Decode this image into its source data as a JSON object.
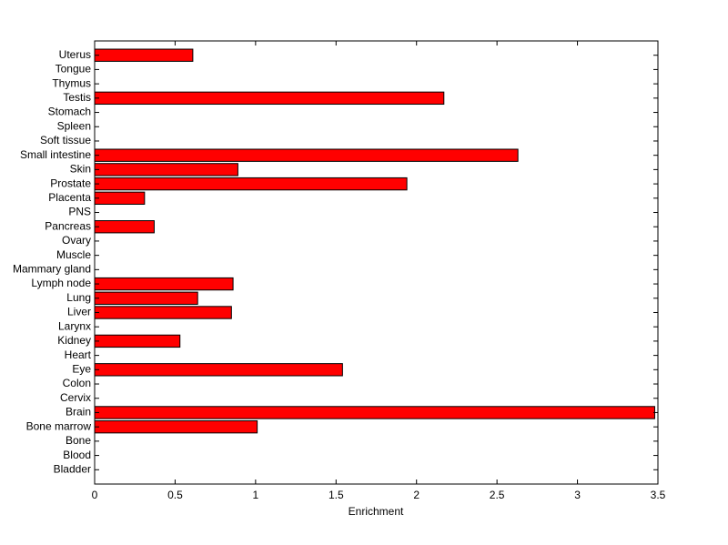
{
  "chart_data": {
    "type": "barh",
    "xlabel": "Enrichment",
    "categories": [
      "Bladder",
      "Blood",
      "Bone",
      "Bone marrow",
      "Brain",
      "Cervix",
      "Colon",
      "Eye",
      "Heart",
      "Kidney",
      "Larynx",
      "Liver",
      "Lung",
      "Lymph node",
      "Mammary gland",
      "Muscle",
      "Ovary",
      "Pancreas",
      "PNS",
      "Placenta",
      "Prostate",
      "Skin",
      "Small intestine",
      "Soft tissue",
      "Spleen",
      "Stomach",
      "Testis",
      "Thymus",
      "Tongue",
      "Uterus"
    ],
    "values": [
      0,
      0,
      0,
      1.01,
      3.48,
      0,
      0,
      1.54,
      0,
      0.53,
      0,
      0.85,
      0.64,
      0.86,
      0,
      0,
      0,
      0.37,
      0,
      0.31,
      1.94,
      0.89,
      2.63,
      0,
      0,
      0,
      2.17,
      0,
      0,
      0.61
    ],
    "color": "#ff0000",
    "xlim": [
      0,
      3.5
    ],
    "xticks": [
      0,
      0.5,
      1,
      1.5,
      2,
      2.5,
      3,
      3.5
    ],
    "grid": false
  }
}
